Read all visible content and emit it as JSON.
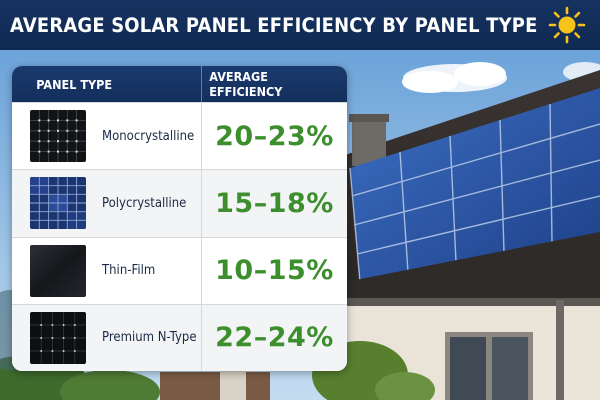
{
  "header": {
    "title": "AVERAGE SOLAR PANEL EFFICIENCY BY PANEL TYPE",
    "icon": "sun-icon"
  },
  "table": {
    "columns": [
      "PANEL TYPE",
      "AVERAGE EFFICIENCY"
    ],
    "rows": [
      {
        "type": "Monocrystalline",
        "efficiency": "20–23%",
        "thumbnail": "monocrystalline-panel"
      },
      {
        "type": "Polycrystalline",
        "efficiency": "15–18%",
        "thumbnail": "polycrystalline-panel"
      },
      {
        "type": "Thin-Film",
        "efficiency": "10–15%",
        "thumbnail": "thin-film-panel"
      },
      {
        "type": "Premium N-Type",
        "efficiency": "22–24%",
        "thumbnail": "premium-n-type-panel"
      }
    ]
  },
  "colors": {
    "header_bg": "#163260",
    "efficiency_text": "#3d8f2e",
    "sun": "#f7c21a"
  },
  "background": "house-roof-with-solar-panels-photo"
}
